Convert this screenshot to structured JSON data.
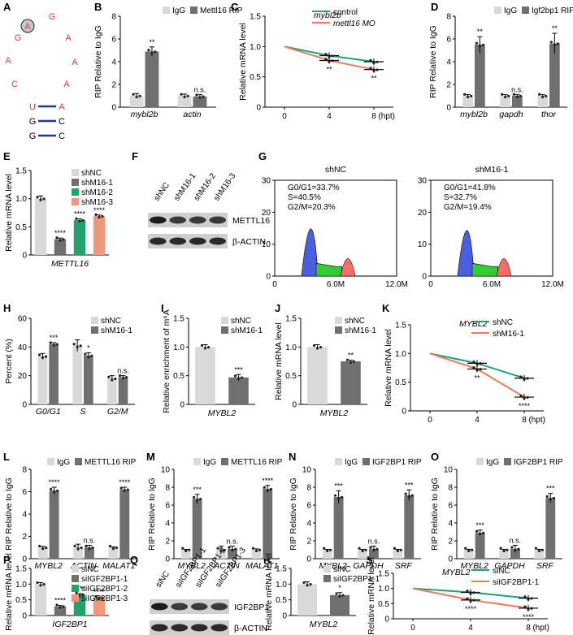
{
  "colors": {
    "igg": "#d9d9d9",
    "rip": "#6f6f6f",
    "nc": "#d9d9d9",
    "kd1": "#6f6f6f",
    "kd2": "#1fa36a",
    "kd3": "#f0967a",
    "ctrl_line": "#1aa37a",
    "kd_line": "#f07a5a",
    "red": "#e53935",
    "navy": "#1f3a8a",
    "flow_g1": "#4a5fe0",
    "flow_s": "#33cc33",
    "flow_g2": "#ff6b6b"
  },
  "panel_letters": [
    "A",
    "B",
    "C",
    "D",
    "E",
    "F",
    "G",
    "H",
    "I",
    "J",
    "K",
    "L",
    "M",
    "N",
    "O",
    "P",
    "Q",
    "R",
    "S"
  ],
  "panelA": {
    "loop": [
      "A",
      "G",
      "A",
      "A",
      "A",
      "C",
      "A",
      "G"
    ],
    "stem_left": [
      "U",
      "G",
      "G"
    ],
    "stem_right": [
      "A",
      "C",
      "C"
    ]
  },
  "blotF": {
    "lanes": [
      "shNC",
      "shM16-1",
      "shM16-2",
      "shM16-3"
    ],
    "rows": [
      "METTL16",
      "β-ACTIN"
    ]
  },
  "blotQ": {
    "lanes": [
      "siNC",
      "siIGF2BP1-1",
      "siIGF2BP1-2",
      "siIGF2BP1-3"
    ],
    "rows": [
      "IGF2BP1",
      "β-ACTIN"
    ]
  },
  "flowG": [
    {
      "title": "shNC",
      "stats": [
        "G0/G1=33.7%",
        "S=40.5%",
        "G2/M=20.3%"
      ],
      "yticks": [
        "0",
        "10",
        "20",
        "30"
      ],
      "xticks": [
        "0",
        "6.0M",
        "12.0M"
      ]
    },
    {
      "title": "shM16-1",
      "stats": [
        "G0/G1=41.8%",
        "S=32.7%",
        "G2/M=19.4%"
      ],
      "yticks": [
        "0",
        "10",
        "20",
        "30"
      ],
      "xticks": [
        "0",
        "6.0M",
        "12.0M"
      ]
    }
  ],
  "chart_data": [
    {
      "panel": "B",
      "type": "bar",
      "categories": [
        "mybl2b",
        "actin"
      ],
      "series": [
        {
          "name": "IgG",
          "values": [
            1.0,
            1.0
          ]
        },
        {
          "name": "Mettl16 RIP",
          "values": [
            4.9,
            0.95
          ]
        }
      ],
      "errors": [
        [
          0.2,
          0.15
        ],
        [
          0.4,
          0.15
        ]
      ],
      "sig": [
        "**",
        "n.s."
      ],
      "ylabel": "RIP Relative to IgG",
      "ylim": [
        0,
        8
      ],
      "yticks": [
        0,
        2,
        4,
        6,
        8
      ],
      "legend": "top"
    },
    {
      "panel": "C",
      "type": "line",
      "title": "mybl2b",
      "x": [
        0,
        4,
        8
      ],
      "xticks": [
        "0",
        "4",
        "8"
      ],
      "xunit": "(hpt)",
      "series": [
        {
          "name": "control",
          "values": [
            1.0,
            0.85,
            0.75
          ]
        },
        {
          "name": "mettl16 MO",
          "values": [
            1.0,
            0.77,
            0.62
          ]
        }
      ],
      "sig": [
        "",
        "**",
        "**"
      ],
      "ylabel": "Relative mRNA level",
      "ylim": [
        0,
        1.5
      ],
      "yticks": [
        0,
        0.5,
        1.0,
        1.5
      ],
      "legend": "top-right"
    },
    {
      "panel": "D",
      "type": "bar",
      "categories": [
        "mybl2b",
        "gapdh",
        "thor"
      ],
      "series": [
        {
          "name": "IgG",
          "values": [
            1.0,
            1.0,
            1.0
          ]
        },
        {
          "name": "Igf2bp1 RIP",
          "values": [
            5.5,
            1.0,
            5.6
          ]
        }
      ],
      "errors": [
        [
          0.1,
          0.1,
          0.1
        ],
        [
          0.7,
          0.1,
          0.9
        ]
      ],
      "sig": [
        "**",
        "n.s.",
        "**"
      ],
      "ylabel": "RIP Relative to IgG",
      "ylim": [
        0,
        8
      ],
      "yticks": [
        0,
        2,
        4,
        6,
        8
      ],
      "legend": "top"
    },
    {
      "panel": "E",
      "type": "bar",
      "categories": [
        "shNC",
        "shM16-1",
        "shM16-2",
        "shM16-3"
      ],
      "values": [
        1.0,
        0.28,
        0.62,
        0.69
      ],
      "errors": [
        0.05,
        0.02,
        0.02,
        0.02
      ],
      "sig": [
        "",
        "****",
        "****",
        "****"
      ],
      "xlabel": "METTL16",
      "ylabel": "Relative mRNA level",
      "ylim": [
        0,
        1.5
      ],
      "yticks": [
        0,
        0.5,
        1.0,
        1.5
      ],
      "legend": "right"
    },
    {
      "panel": "H",
      "type": "bar",
      "categories": [
        "G0/G1",
        "S",
        "G2/M"
      ],
      "series": [
        {
          "name": "shNC",
          "values": [
            33.5,
            41,
            18
          ]
        },
        {
          "name": "shM16-1",
          "values": [
            42,
            34,
            19
          ]
        }
      ],
      "errors": [
        [
          2,
          4,
          2
        ],
        [
          1,
          2,
          1
        ]
      ],
      "sig": [
        "***",
        "*",
        "n.s."
      ],
      "ylabel": "Percent (%)",
      "ylim": [
        0,
        60
      ],
      "yticks": [
        0,
        20,
        40,
        60
      ],
      "legend": "top-right"
    },
    {
      "panel": "I",
      "type": "bar",
      "categories": [
        "shNC",
        "shM16-1"
      ],
      "values": [
        1.0,
        0.47
      ],
      "errors": [
        0.04,
        0.05
      ],
      "sig": [
        "",
        "***"
      ],
      "xlabel": "MYBL2",
      "ylabel": "Relative enrichment of m⁶A",
      "ylim": [
        0,
        1.5
      ],
      "yticks": [
        0,
        0.5,
        1.0,
        1.5
      ],
      "legend": "top-right"
    },
    {
      "panel": "J",
      "type": "bar",
      "categories": [
        "shNC",
        "shM16-1"
      ],
      "values": [
        1.0,
        0.75
      ],
      "errors": [
        0.04,
        0.02
      ],
      "sig": [
        "",
        "**"
      ],
      "xlabel": "MYBL2",
      "ylabel": "Relative mRNA level",
      "ylim": [
        0,
        1.5
      ],
      "yticks": [
        0,
        0.5,
        1.0,
        1.5
      ],
      "legend": "top-right"
    },
    {
      "panel": "K",
      "type": "line",
      "title": "MYBL2",
      "x": [
        0,
        4,
        8
      ],
      "xticks": [
        "0",
        "4",
        "8"
      ],
      "xunit": "(hpt)",
      "series": [
        {
          "name": "shNC",
          "values": [
            1.0,
            0.83,
            0.57
          ]
        },
        {
          "name": "shM16-1",
          "values": [
            1.0,
            0.73,
            0.24
          ]
        }
      ],
      "sig": [
        "",
        "**",
        "****"
      ],
      "ylabel": "Relative mRNA level",
      "ylim": [
        0,
        1.5
      ],
      "yticks": [
        0,
        0.5,
        1.0,
        1.5
      ],
      "legend": "top-right"
    },
    {
      "panel": "L",
      "type": "bar",
      "categories": [
        "MYBL2",
        "ACTIN",
        "MALAT1"
      ],
      "series": [
        {
          "name": "IgG",
          "values": [
            1.0,
            1.0,
            1.0
          ]
        },
        {
          "name": "METTL16 RIP",
          "values": [
            6.1,
            1.0,
            6.2
          ]
        }
      ],
      "errors": [
        [
          0.1,
          0.3,
          0.05
        ],
        [
          0.3,
          0.2,
          0.2
        ]
      ],
      "sig": [
        "****",
        "n.s.",
        "****"
      ],
      "ylabel": "RIP Relative to IgG",
      "ylim": [
        0,
        8
      ],
      "yticks": [
        0,
        2,
        4,
        6,
        8
      ],
      "legend": "top"
    },
    {
      "panel": "M",
      "type": "bar",
      "categories": [
        "MYBL2",
        "ACTIN",
        "MALAT1"
      ],
      "series": [
        {
          "name": "IgG",
          "values": [
            1.0,
            1.0,
            1.0
          ]
        },
        {
          "name": "METTL16 RIP",
          "values": [
            6.7,
            1.1,
            7.8
          ]
        }
      ],
      "errors": [
        [
          0.05,
          0.4,
          0.1
        ],
        [
          0.5,
          0.3,
          0.4
        ]
      ],
      "sig": [
        "***",
        "n.s.",
        "****"
      ],
      "ylabel": "RIP Relative to IgG",
      "ylim": [
        0,
        10
      ],
      "yticks": [
        0,
        2,
        4,
        6,
        8,
        10
      ],
      "legend": "top"
    },
    {
      "panel": "N",
      "type": "bar",
      "categories": [
        "MYBL2",
        "GAPDH",
        "SRF"
      ],
      "series": [
        {
          "name": "IgG",
          "values": [
            1.0,
            1.0,
            1.0
          ]
        },
        {
          "name": "IGF2BP1 RIP",
          "values": [
            6.9,
            1.1,
            7.1
          ]
        }
      ],
      "errors": [
        [
          0.05,
          0.05,
          0.05
        ],
        [
          0.7,
          0.3,
          0.6
        ]
      ],
      "sig": [
        "***",
        "n.s.",
        "***"
      ],
      "ylabel": "RIP Relative to IgG",
      "ylim": [
        0,
        10
      ],
      "yticks": [
        0,
        2,
        4,
        6,
        8,
        10
      ],
      "legend": "top"
    },
    {
      "panel": "O",
      "type": "bar",
      "categories": [
        "MYBL2",
        "GAPDH",
        "SRF"
      ],
      "series": [
        {
          "name": "IgG",
          "values": [
            1.0,
            1.0,
            1.0
          ]
        },
        {
          "name": "IGF2BP1 RIP",
          "values": [
            2.9,
            1.1,
            6.8
          ]
        }
      ],
      "errors": [
        [
          0.05,
          0.05,
          0.05
        ],
        [
          0.3,
          0.4,
          0.5
        ]
      ],
      "sig": [
        "***",
        "n.s.",
        "***"
      ],
      "ylabel": "RIP Relative to IgG",
      "ylim": [
        0,
        10
      ],
      "yticks": [
        0,
        2,
        4,
        6,
        8,
        10
      ],
      "legend": "top"
    },
    {
      "panel": "P",
      "type": "bar",
      "categories": [
        "siNC",
        "siIGF2BP1-1",
        "siIGF2BP1-2",
        "siIGF2BP1-3"
      ],
      "values": [
        1.0,
        0.29,
        0.67,
        0.56
      ],
      "errors": [
        0.05,
        0.03,
        0.03,
        0.03
      ],
      "sig": [
        "",
        "****",
        "****",
        "****"
      ],
      "xlabel": "IGF2BP1",
      "ylabel": "Relative mRNA level",
      "ylim": [
        0,
        1.5
      ],
      "yticks": [
        0,
        0.5,
        1.0,
        1.5
      ],
      "legend": "right"
    },
    {
      "panel": "R",
      "type": "bar",
      "categories": [
        "siNC",
        "siIGF2BP1-1"
      ],
      "values": [
        1.0,
        0.65
      ],
      "errors": [
        0.07,
        0.08
      ],
      "sig": [
        "",
        "*"
      ],
      "xlabel": "MYBL2",
      "ylabel": "Relative mRNA level",
      "ylim": [
        0,
        1.5
      ],
      "yticks": [
        0,
        0.5,
        1.0,
        1.5
      ],
      "legend": "top-right"
    },
    {
      "panel": "S",
      "type": "line",
      "title": "MYBL2",
      "x": [
        0,
        4,
        8
      ],
      "xticks": [
        "0",
        "4",
        "8"
      ],
      "xunit": "(hpt)",
      "series": [
        {
          "name": "siNC",
          "values": [
            1.0,
            0.87,
            0.68
          ]
        },
        {
          "name": "siIGF2BP1-1",
          "values": [
            1.0,
            0.62,
            0.35
          ]
        }
      ],
      "sig": [
        "",
        "****",
        "****"
      ],
      "ylabel": "Relative mRNA level",
      "ylim": [
        0,
        1.5
      ],
      "yticks": [
        0,
        0.5,
        1.0,
        1.5
      ],
      "legend": "top-right"
    }
  ]
}
